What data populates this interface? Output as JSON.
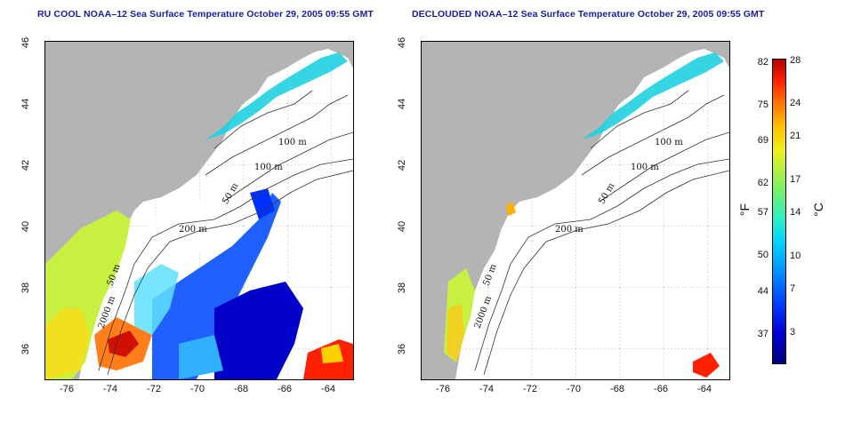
{
  "titles": {
    "left": "RU COOL NOAA–12 Sea Surface Temperature October 29, 2005 09:55 GMT",
    "right": "DECLOUDED NOAA–12 Sea Surface Temperature October 29, 2005 09:55 GMT"
  },
  "axes": {
    "lat_ticks": [
      "46",
      "44",
      "42",
      "40",
      "38",
      "36"
    ],
    "lon_ticks": [
      "-76",
      "-74",
      "-72",
      "-70",
      "-68",
      "-66",
      "-64"
    ],
    "lat_range": [
      35,
      46
    ],
    "lon_range": [
      -77,
      -63
    ]
  },
  "contours": {
    "left": [
      "100 m",
      "100 m",
      "50 m",
      "200 m",
      "50 m",
      "2000 m"
    ],
    "right": [
      "100 m",
      "100 m",
      "50 m",
      "200 m",
      "50 m",
      "2000 m"
    ]
  },
  "colorbar": {
    "fahrenheit_label": "°F",
    "celsius_label": "°C",
    "fahrenheit_ticks": [
      "82",
      "75",
      "69",
      "62",
      "57",
      "50",
      "44",
      "37"
    ],
    "celsius_ticks": [
      "28",
      "24",
      "21",
      "17",
      "14",
      "10",
      "7",
      "3"
    ]
  },
  "colors": {
    "land": "#b4b4b4",
    "title": "#1a1aa6",
    "cold": "#0000d6",
    "warm": "#ff2000"
  }
}
